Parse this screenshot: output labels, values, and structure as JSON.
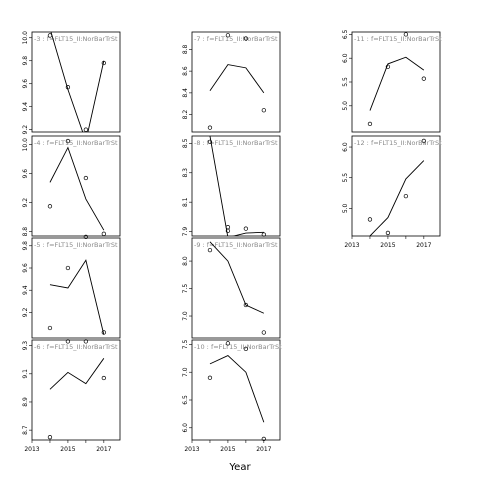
{
  "chart_data": {
    "type": "line",
    "xlabel": "Year",
    "x_ticks": [
      2013,
      2015,
      2017
    ],
    "panels": [
      {
        "title": "-3 : f=FLT15_II:NorBarTrSt",
        "ylim": [
          9.18,
          10.05
        ],
        "yticks": [
          9.2,
          9.4,
          9.6,
          9.8,
          10.0
        ],
        "line": {
          "x": [
            2014,
            2015,
            2016,
            2017
          ],
          "y": [
            10.08,
            9.55,
            9.1,
            9.8
          ]
        },
        "points": {
          "x": [
            2014,
            2015,
            2016,
            2017
          ],
          "y": [
            10.02,
            9.57,
            9.2,
            9.78
          ]
        }
      },
      {
        "title": "-7 : f=FLT15_II:NorBarTrSt",
        "ylim": [
          8.04,
          8.96
        ],
        "yticks": [
          8.2,
          8.4,
          8.6,
          8.8
        ],
        "line": {
          "x": [
            2014,
            2015,
            2016,
            2017
          ],
          "y": [
            8.42,
            8.66,
            8.63,
            8.4
          ]
        },
        "points": {
          "x": [
            2014,
            2015,
            2016,
            2017
          ],
          "y": [
            8.08,
            8.93,
            8.9,
            8.24
          ]
        }
      },
      {
        "title": "-11 : f=FLT15_II:NorBarTrSt",
        "ylim": [
          4.45,
          6.55
        ],
        "yticks": [
          5.0,
          5.5,
          6.0,
          6.5
        ],
        "line": {
          "x": [
            2014,
            2015,
            2016,
            2017
          ],
          "y": [
            4.9,
            5.88,
            6.02,
            5.75
          ]
        },
        "points": {
          "x": [
            2014,
            2015,
            2016,
            2017
          ],
          "y": [
            4.62,
            5.82,
            6.5,
            5.57
          ]
        }
      },
      {
        "title": "-4 : f=FLT15_II:NorBarTrSt",
        "ylim": [
          8.74,
          10.12
        ],
        "yticks": [
          8.8,
          9.2,
          9.6,
          10.0
        ],
        "line": {
          "x": [
            2014,
            2015,
            2016,
            2017
          ],
          "y": [
            9.48,
            9.96,
            9.25,
            8.82
          ]
        },
        "points": {
          "x": [
            2014,
            2015,
            2016,
            2017
          ],
          "y": [
            9.15,
            10.05,
            9.54,
            8.77
          ]
        }
      },
      {
        "title": "-8 : f=FLT15_II:NorBarTrSt",
        "ylim": [
          7.87,
          8.55
        ],
        "yticks": [
          7.9,
          8.1,
          8.3,
          8.5
        ],
        "line": {
          "x": [
            2014,
            2015,
            2016,
            2017
          ],
          "y": [
            8.55,
            7.86,
            7.89,
            7.895
          ]
        },
        "points": {
          "x": [
            2014,
            2015,
            2016,
            2017
          ],
          "y": [
            8.51,
            7.93,
            7.92,
            7.88
          ]
        }
      },
      {
        "title": "-12 : f=FLT15_II:NorBarTrSt",
        "ylim": [
          4.55,
          6.18
        ],
        "yticks": [
          5.0,
          5.5,
          6.0
        ],
        "line": {
          "x": [
            2014,
            2015,
            2016,
            2017
          ],
          "y": [
            4.55,
            4.85,
            5.48,
            5.78
          ]
        },
        "points": {
          "x": [
            2014,
            2015,
            2016,
            2017
          ],
          "y": [
            4.82,
            4.6,
            5.2,
            6.1
          ]
        }
      },
      {
        "title": "-5 : f=FLT15_II:NorBarTrSt",
        "ylim": [
          8.97,
          9.87
        ],
        "yticks": [
          9.2,
          9.4,
          9.6,
          9.8
        ],
        "line": {
          "x": [
            2014,
            2015,
            2016,
            2017
          ],
          "y": [
            9.45,
            9.42,
            9.67,
            9.0
          ]
        },
        "points": {
          "x": [
            2014,
            2015,
            2016,
            2017
          ],
          "y": [
            9.06,
            9.6,
            9.88,
            9.02
          ]
        }
      },
      {
        "title": "-9 : f=FLT15_II:NorBarTrSt",
        "ylim": [
          6.6,
          8.42
        ],
        "yticks": [
          7.0,
          7.5,
          8.0
        ],
        "line": {
          "x": [
            2014,
            2015,
            2016,
            2017
          ],
          "y": [
            8.35,
            8.0,
            7.2,
            7.05
          ]
        },
        "points": {
          "x": [
            2014,
            2015,
            2016,
            2017
          ],
          "y": [
            8.2,
            8.55,
            7.2,
            6.7
          ]
        }
      },
      {
        "title": "-6 : f=FLT15_II:NorBarTrSt",
        "ylim": [
          8.63,
          9.34
        ],
        "yticks": [
          8.7,
          8.9,
          9.1,
          9.3
        ],
        "line": {
          "x": [
            2014,
            2015,
            2016,
            2017
          ],
          "y": [
            8.99,
            9.11,
            9.03,
            9.21
          ]
        },
        "points": {
          "x": [
            2014,
            2015,
            2016,
            2017
          ],
          "y": [
            8.65,
            9.33,
            9.33,
            9.07
          ]
        }
      },
      {
        "title": "-10 : f=FLT15_II:NorBarTrSt",
        "ylim": [
          5.78,
          7.58
        ],
        "yticks": [
          6.0,
          6.5,
          7.0,
          7.5
        ],
        "line": {
          "x": [
            2014,
            2015,
            2016,
            2017
          ],
          "y": [
            7.15,
            7.3,
            7.0,
            6.1
          ]
        },
        "points": {
          "x": [
            2014,
            2015,
            2016,
            2017
          ],
          "y": [
            6.9,
            7.52,
            7.42,
            5.8
          ]
        }
      }
    ]
  }
}
